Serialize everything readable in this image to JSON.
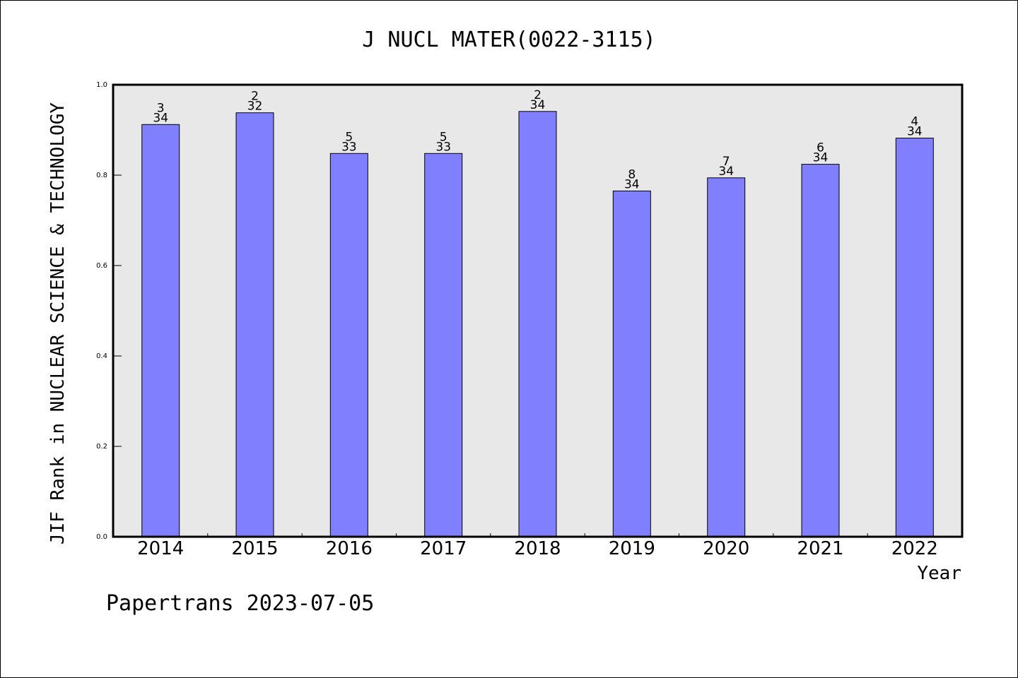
{
  "chart_data": {
    "type": "bar",
    "title": "J NUCL MATER(0022-3115)",
    "ylabel": "JIF Rank in NUCLEAR SCIENCE & TECHNOLOGY",
    "xlabel": "Year",
    "ylim": [
      0,
      1.0
    ],
    "yticks": [
      "0.0",
      "0.2",
      "0.4",
      "0.6",
      "0.8",
      "1.0"
    ],
    "categories": [
      "2014",
      "2015",
      "2016",
      "2017",
      "2018",
      "2019",
      "2020",
      "2021",
      "2022"
    ],
    "values": [
      0.912,
      0.938,
      0.848,
      0.848,
      0.941,
      0.765,
      0.794,
      0.824,
      0.882
    ],
    "rank_labels": [
      {
        "rank": "3",
        "total": "34"
      },
      {
        "rank": "2",
        "total": "32"
      },
      {
        "rank": "5",
        "total": "33"
      },
      {
        "rank": "5",
        "total": "33"
      },
      {
        "rank": "2",
        "total": "34"
      },
      {
        "rank": "8",
        "total": "34"
      },
      {
        "rank": "7",
        "total": "34"
      },
      {
        "rank": "6",
        "total": "34"
      },
      {
        "rank": "4",
        "total": "34"
      }
    ],
    "grid": false,
    "colors": {
      "bar": "#8080ff",
      "plot_background": "#e8e8e8",
      "axis": "#000000"
    }
  },
  "footer": {
    "text": "Papertrans 2023-07-05"
  }
}
